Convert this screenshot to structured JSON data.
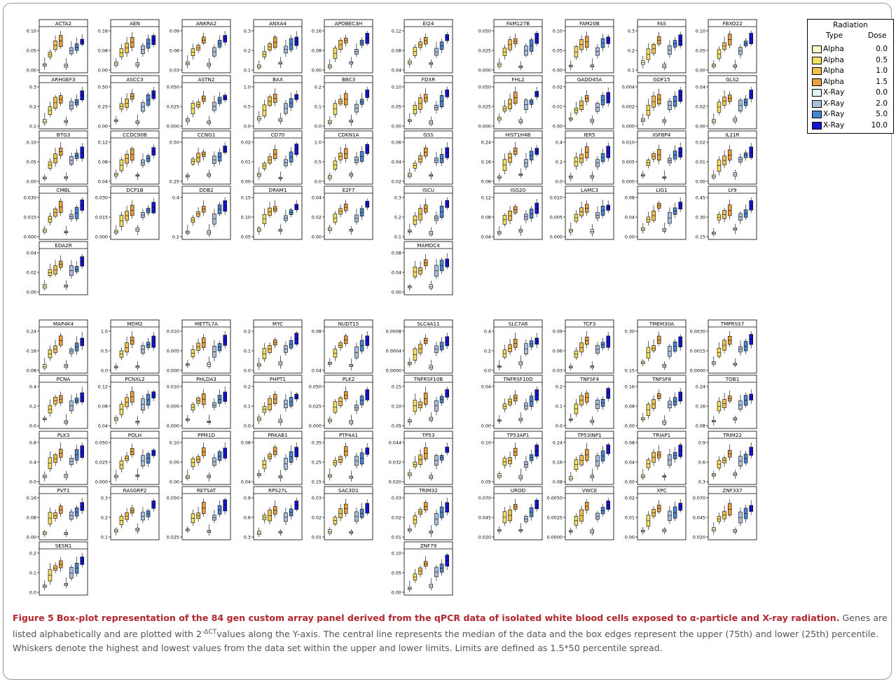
{
  "legend": {
    "title": "Radiation",
    "type_header": "Type",
    "dose_header": "Dose",
    "items": [
      {
        "type": "Alpha",
        "dose": "0.0",
        "color": "#fbf6c6"
      },
      {
        "type": "Alpha",
        "dose": "0.5",
        "color": "#f3df62"
      },
      {
        "type": "Alpha",
        "dose": "1.0",
        "color": "#f0c04e"
      },
      {
        "type": "Alpha",
        "dose": "1.5",
        "color": "#e8a040"
      },
      {
        "type": "X-Ray",
        "dose": "0.0",
        "color": "#dff3f6"
      },
      {
        "type": "X-Ray",
        "dose": "2.0",
        "color": "#a9bfdc"
      },
      {
        "type": "X-Ray",
        "dose": "5.0",
        "color": "#4a86d0"
      },
      {
        "type": "X-Ray",
        "dose": "10.0",
        "color": "#1414cc"
      }
    ]
  },
  "chart_data": [
    {
      "type": "box",
      "gene": "ACTA2",
      "yticks": [
        "0.00",
        "0.05",
        "0.10"
      ]
    },
    {
      "type": "box",
      "gene": "AEN",
      "yticks": [
        "0.00",
        "0.08",
        "0.16"
      ]
    },
    {
      "type": "box",
      "gene": "ANKRA2",
      "yticks": [
        "0.03",
        "0.06",
        "0.09"
      ]
    },
    {
      "type": "box",
      "gene": "ANXA4",
      "yticks": [
        "0.1",
        "0.2",
        "0.3"
      ]
    },
    {
      "type": "box",
      "gene": "APOBEC3H",
      "yticks": [
        "0.00",
        "0.08",
        "0.16"
      ]
    },
    {
      "type": "box",
      "gene": "ARHGEF3",
      "yticks": [
        "0.1",
        "0.2",
        "0.3"
      ]
    },
    {
      "type": "box",
      "gene": "ASCC3",
      "yticks": [
        "0.00",
        "0.25",
        "0.50"
      ]
    },
    {
      "type": "box",
      "gene": "ASTN2",
      "yticks": [
        "0.000",
        "0.025",
        "0.050"
      ]
    },
    {
      "type": "box",
      "gene": "BAX",
      "yticks": [
        "0.0",
        "0.5",
        "1.0"
      ]
    },
    {
      "type": "box",
      "gene": "BBC3",
      "yticks": [
        "0.0",
        "0.1",
        "0.2"
      ]
    },
    {
      "type": "box",
      "gene": "BTG3",
      "yticks": [
        "0.00",
        "0.05",
        "0.10"
      ]
    },
    {
      "type": "box",
      "gene": "CCDC90B",
      "yticks": [
        "0.04",
        "0.08",
        "0.12"
      ]
    },
    {
      "type": "box",
      "gene": "CCNG1",
      "yticks": [
        "0.25",
        "0.50"
      ]
    },
    {
      "type": "box",
      "gene": "CD70",
      "yticks": [
        "0.00",
        "0.01",
        "0.02"
      ]
    },
    {
      "type": "box",
      "gene": "CDKN1A",
      "yticks": [
        "0.0",
        "0.5",
        "1.0"
      ]
    },
    {
      "type": "box",
      "gene": "CMBL",
      "yticks": [
        "0.000",
        "0.015",
        "0.030"
      ]
    },
    {
      "type": "box",
      "gene": "DCP1B",
      "yticks": [
        "0.000",
        "0.015",
        "0.030"
      ]
    },
    {
      "type": "box",
      "gene": "DDB2",
      "yticks": [
        "0.2",
        "0.4"
      ]
    },
    {
      "type": "box",
      "gene": "DRAM1",
      "yticks": [
        "0.05",
        "0.10",
        "0.15"
      ]
    },
    {
      "type": "box",
      "gene": "E2F7",
      "yticks": [
        "0.00",
        "0.02",
        "0.04"
      ]
    },
    {
      "type": "box",
      "gene": "EDA2R",
      "yticks": [
        "0.00",
        "0.02",
        "0.04"
      ]
    },
    {
      "type": "box",
      "gene": "EI24",
      "yticks": [
        "0.04",
        "0.08",
        "0.12"
      ]
    },
    {
      "type": "box",
      "gene": "FAM127B",
      "yticks": [
        "0.000",
        "0.025",
        "0.050"
      ]
    },
    {
      "type": "box",
      "gene": "FAM20B",
      "yticks": [
        "0.00",
        "0.05",
        "0.10"
      ]
    },
    {
      "type": "box",
      "gene": "FAS",
      "yticks": [
        "0.1",
        "0.2",
        "0.3"
      ]
    },
    {
      "type": "box",
      "gene": "FBXO22",
      "yticks": [
        "0.00",
        "0.05",
        "0.10"
      ]
    },
    {
      "type": "box",
      "gene": "FDXR",
      "yticks": [
        "0.00",
        "0.05",
        "0.10"
      ]
    },
    {
      "type": "box",
      "gene": "FHL2",
      "yticks": [
        "0.000",
        "0.025",
        "0.050"
      ]
    },
    {
      "type": "box",
      "gene": "GADD45A",
      "yticks": [
        "0.00",
        "0.01",
        "0.02"
      ]
    },
    {
      "type": "box",
      "gene": "GDF15",
      "yticks": [
        "0.000",
        "0.002",
        "0.004"
      ]
    },
    {
      "type": "box",
      "gene": "GLS2",
      "yticks": [
        "0.00",
        "0.02",
        "0.04"
      ]
    },
    {
      "type": "box",
      "gene": "GSS",
      "yticks": [
        "0.02",
        "0.04",
        "0.06"
      ]
    },
    {
      "type": "box",
      "gene": "HIST1H4B",
      "yticks": [
        "0.08",
        "0.16",
        "0.24"
      ]
    },
    {
      "type": "box",
      "gene": "IER5",
      "yticks": [
        "0.0",
        "0.2",
        "0.4"
      ]
    },
    {
      "type": "box",
      "gene": "IGFBP4",
      "yticks": [
        "0.000",
        "0.005",
        "0.010"
      ]
    },
    {
      "type": "box",
      "gene": "IL21R",
      "yticks": [
        "0.00",
        "0.01",
        "0.02"
      ]
    },
    {
      "type": "box",
      "gene": "ISCU",
      "yticks": [
        "0.1",
        "0.2",
        "0.3"
      ]
    },
    {
      "type": "box",
      "gene": "ISG20",
      "yticks": [
        "0.04",
        "0.08",
        "0.12"
      ]
    },
    {
      "type": "box",
      "gene": "LAMC3",
      "yticks": [
        "0.000",
        "0.005",
        "0.010"
      ]
    },
    {
      "type": "box",
      "gene": "LIG1",
      "yticks": [
        "0.00",
        "0.04",
        "0.08"
      ]
    },
    {
      "type": "box",
      "gene": "LY9",
      "yticks": [
        "0.15",
        "0.30",
        "0.45"
      ]
    },
    {
      "type": "box",
      "gene": "MAMDC4",
      "yticks": [
        "0.00",
        "0.04",
        "0.08"
      ]
    },
    {
      "type": "box",
      "gene": "MAP4K4",
      "yticks": [
        "0.08",
        "0.16",
        "0.24"
      ]
    },
    {
      "type": "box",
      "gene": "MDM2",
      "yticks": [
        "0.0",
        "0.5",
        "1.0"
      ]
    },
    {
      "type": "box",
      "gene": "METTL7A",
      "yticks": [
        "0.000",
        "0.005",
        "0.010"
      ]
    },
    {
      "type": "box",
      "gene": "MYC",
      "yticks": [
        "0.0",
        "0.1",
        "0.2"
      ]
    },
    {
      "type": "box",
      "gene": "NUDT15",
      "yticks": [
        "0.04",
        "0.08"
      ]
    },
    {
      "type": "box",
      "gene": "PCNA",
      "yticks": [
        "0.0",
        "0.2",
        "0.4"
      ]
    },
    {
      "type": "box",
      "gene": "PCNXL2",
      "yticks": [
        "0.04",
        "0.08",
        "0.12"
      ]
    },
    {
      "type": "box",
      "gene": "PHLDA3",
      "yticks": [
        "0.000",
        "0.005",
        "0.010"
      ]
    },
    {
      "type": "box",
      "gene": "PHPT1",
      "yticks": [
        "0.0",
        "0.1",
        "0.2"
      ]
    },
    {
      "type": "box",
      "gene": "PLK2",
      "yticks": [
        "0.000",
        "0.025",
        "0.050"
      ]
    },
    {
      "type": "box",
      "gene": "PLK3",
      "yticks": [
        "0.0",
        "0.4",
        "0.8"
      ]
    },
    {
      "type": "box",
      "gene": "POLH",
      "yticks": [
        "0.000",
        "0.025",
        "0.050"
      ]
    },
    {
      "type": "box",
      "gene": "PPM1D",
      "yticks": [
        "0.00",
        "0.05",
        "0.10"
      ]
    },
    {
      "type": "box",
      "gene": "PRKAB1",
      "yticks": [
        "0.04",
        "0.08"
      ]
    },
    {
      "type": "box",
      "gene": "PTP4A1",
      "yticks": [
        "0.15",
        "0.25",
        "0.35"
      ]
    },
    {
      "type": "box",
      "gene": "PVT1",
      "yticks": [
        "0.00",
        "0.08",
        "0.16"
      ]
    },
    {
      "type": "box",
      "gene": "RASGRP2",
      "yticks": [
        "0.1",
        "0.2",
        "0.3"
      ]
    },
    {
      "type": "box",
      "gene": "RETSAT",
      "yticks": [
        "0.025",
        "0.050"
      ]
    },
    {
      "type": "box",
      "gene": "RPS27L",
      "yticks": [
        "0.3",
        "0.6",
        "0.9"
      ]
    },
    {
      "type": "box",
      "gene": "SAC3D1",
      "yticks": [
        "0.01",
        "0.02",
        "0.03"
      ]
    },
    {
      "type": "box",
      "gene": "SESN1",
      "yticks": [
        "0.0",
        "0.1",
        "0.2"
      ]
    },
    {
      "type": "box",
      "gene": "SLC4A11",
      "yticks": [
        "0.0000",
        "0.0004",
        "0.0008"
      ]
    },
    {
      "type": "box",
      "gene": "SLC7A6",
      "yticks": [
        "0.0",
        "0.2",
        "0.4"
      ]
    },
    {
      "type": "box",
      "gene": "TCF3",
      "yticks": [
        "0.03",
        "0.06",
        "0.09"
      ]
    },
    {
      "type": "box",
      "gene": "TMEM30A",
      "yticks": [
        "0.15",
        "0.30"
      ]
    },
    {
      "type": "box",
      "gene": "TMPRSS7",
      "yticks": [
        "0.0000",
        "0.0015",
        "0.0030"
      ]
    },
    {
      "type": "box",
      "gene": "TNFRSF10B",
      "yticks": [
        "0.05",
        "0.10",
        "0.15"
      ]
    },
    {
      "type": "box",
      "gene": "TNFRSF10D",
      "yticks": [
        "0.00",
        "0.04"
      ]
    },
    {
      "type": "box",
      "gene": "TNFSF4",
      "yticks": [
        "0.0",
        "0.1",
        "0.2"
      ]
    },
    {
      "type": "box",
      "gene": "TNFSF8",
      "yticks": [
        "0.00",
        "0.08",
        "0.16"
      ]
    },
    {
      "type": "box",
      "gene": "TOB1",
      "yticks": [
        "0.08",
        "0.16",
        "0.24"
      ]
    },
    {
      "type": "box",
      "gene": "TP53",
      "yticks": [
        "0.020",
        "0.032",
        "0.044"
      ]
    },
    {
      "type": "box",
      "gene": "TP53AP1",
      "yticks": [
        "0.05",
        "0.10"
      ]
    },
    {
      "type": "box",
      "gene": "TP53INP1",
      "yticks": [
        "0.08",
        "0.16",
        "0.24"
      ]
    },
    {
      "type": "box",
      "gene": "TRIAP1",
      "yticks": [
        "0.00",
        "0.04",
        "0.08"
      ]
    },
    {
      "type": "box",
      "gene": "TRIM22",
      "yticks": [
        "0.3",
        "0.6",
        "0.9"
      ]
    },
    {
      "type": "box",
      "gene": "TRIM32",
      "yticks": [
        "0.01",
        "0.02",
        "0.03"
      ]
    },
    {
      "type": "box",
      "gene": "UROD",
      "yticks": [
        "0.020",
        "0.045",
        "0.070"
      ]
    },
    {
      "type": "box",
      "gene": "VWCE",
      "yticks": [
        "0.0000",
        "0.0025",
        "0.0050"
      ]
    },
    {
      "type": "box",
      "gene": "XPC",
      "yticks": [
        "0.00",
        "0.01",
        "0.02"
      ]
    },
    {
      "type": "box",
      "gene": "ZNF337",
      "yticks": [
        "0.020",
        "0.045",
        "0.070"
      ]
    },
    {
      "type": "box",
      "gene": "ZNF79",
      "yticks": [
        "0.00",
        "0.05",
        "0.10"
      ]
    }
  ],
  "caption": {
    "figure_label": "Figure 5",
    "title": "Box-plot representation of the 84 gen custom array panel derived from the qPCR data of isolated white blood cells exposed to α-particle and X-ray radiation.",
    "text_before_sup": "Genes are listed alphabetically and are plotted with 2",
    "superscript": "-ΔCT",
    "text_after_sup": "values along the Y-axis. The central line represents the median of the data and the box edges represent the upper (75th) and lower (25th) percentile. Whiskers denote the highest and lowest values from the data set within the upper and lower limits. Limits are defined as 1.5*50 percentile spread."
  }
}
